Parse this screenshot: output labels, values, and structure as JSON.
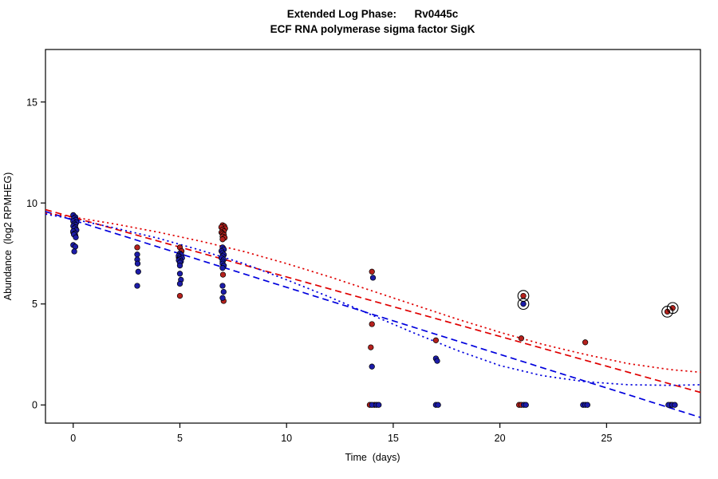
{
  "title": {
    "line1": "Extended Log Phase:      Rv0445c",
    "line2": "ECF RNA polymerase sigma factor SigK"
  },
  "chart_data": {
    "type": "scatter",
    "title": "Extended Log Phase:      Rv0445c",
    "subtitle": "ECF RNA polymerase sigma factor SigK",
    "xlabel": "Time  (days)",
    "ylabel": "Abundance  (log2 RPMHEG)",
    "xlim": [
      -1.3,
      29.4
    ],
    "ylim": [
      -0.9,
      17.6
    ],
    "x_ticks": [
      0,
      5,
      10,
      15,
      20,
      25
    ],
    "y_ticks": [
      0,
      5,
      10,
      15
    ],
    "grid": false,
    "legend": "none",
    "series": [
      {
        "name": "condition-red",
        "point_color": "#b5211d",
        "points": [
          [
            0.05,
            9.0
          ],
          [
            0.12,
            8.72
          ],
          [
            0.0,
            8.55
          ],
          [
            0.1,
            8.38
          ],
          [
            3.0,
            7.8
          ],
          [
            5.0,
            7.8
          ],
          [
            5.08,
            7.62
          ],
          [
            4.95,
            7.3
          ],
          [
            5.0,
            5.4
          ],
          [
            7.0,
            8.9
          ],
          [
            7.08,
            8.85
          ],
          [
            6.94,
            8.8
          ],
          [
            7.12,
            8.74
          ],
          [
            7.0,
            8.68
          ],
          [
            7.06,
            8.6
          ],
          [
            6.95,
            8.54
          ],
          [
            7.0,
            8.48
          ],
          [
            7.06,
            8.42
          ],
          [
            7.0,
            8.34
          ],
          [
            7.1,
            8.28
          ],
          [
            7.0,
            8.2
          ],
          [
            7.02,
            6.45
          ],
          [
            7.05,
            5.15
          ],
          [
            14.0,
            6.6
          ],
          [
            14.0,
            4.0
          ],
          [
            13.95,
            2.85
          ],
          [
            13.9,
            0
          ],
          [
            14.12,
            0
          ],
          [
            17.0,
            3.2
          ],
          [
            21.1,
            5.4
          ],
          [
            21.0,
            3.3
          ],
          [
            20.9,
            0
          ],
          [
            21.0,
            0
          ],
          [
            24.0,
            3.1
          ],
          [
            27.85,
            4.62
          ],
          [
            28.1,
            4.8
          ],
          [
            28.0,
            0
          ]
        ]
      },
      {
        "name": "condition-blue",
        "point_color": "#1c1ca8",
        "points": [
          [
            0.0,
            9.4
          ],
          [
            0.1,
            9.3
          ],
          [
            0.04,
            9.24
          ],
          [
            0.12,
            9.16
          ],
          [
            0.0,
            9.1
          ],
          [
            0.15,
            9.04
          ],
          [
            0.05,
            8.98
          ],
          [
            0.1,
            8.92
          ],
          [
            0.0,
            8.86
          ],
          [
            0.1,
            8.8
          ],
          [
            0.05,
            8.74
          ],
          [
            0.15,
            8.66
          ],
          [
            0.0,
            8.6
          ],
          [
            0.08,
            8.5
          ],
          [
            0.03,
            8.44
          ],
          [
            0.12,
            8.3
          ],
          [
            0.0,
            7.92
          ],
          [
            0.1,
            7.84
          ],
          [
            0.05,
            7.6
          ],
          [
            3.0,
            7.45
          ],
          [
            3.0,
            7.2
          ],
          [
            3.02,
            7.0
          ],
          [
            3.05,
            6.6
          ],
          [
            3.0,
            5.9
          ],
          [
            5.0,
            7.5
          ],
          [
            5.06,
            7.44
          ],
          [
            4.94,
            7.38
          ],
          [
            5.0,
            7.32
          ],
          [
            5.1,
            7.28
          ],
          [
            5.0,
            7.22
          ],
          [
            4.95,
            7.16
          ],
          [
            5.05,
            7.1
          ],
          [
            5.0,
            7.04
          ],
          [
            5.0,
            6.9
          ],
          [
            5.0,
            6.5
          ],
          [
            5.05,
            6.2
          ],
          [
            5.0,
            6.0
          ],
          [
            7.0,
            7.8
          ],
          [
            7.06,
            7.7
          ],
          [
            6.95,
            7.62
          ],
          [
            7.0,
            7.52
          ],
          [
            7.06,
            7.44
          ],
          [
            7.0,
            7.36
          ],
          [
            6.95,
            7.28
          ],
          [
            7.05,
            7.2
          ],
          [
            7.0,
            7.1
          ],
          [
            7.0,
            7.0
          ],
          [
            7.06,
            6.9
          ],
          [
            7.0,
            6.78
          ],
          [
            7.0,
            5.9
          ],
          [
            7.05,
            5.6
          ],
          [
            7.0,
            5.3
          ],
          [
            14.05,
            6.3
          ],
          [
            14.0,
            1.9
          ],
          [
            14.0,
            0
          ],
          [
            14.22,
            0
          ],
          [
            14.32,
            0
          ],
          [
            17.0,
            2.3
          ],
          [
            17.06,
            2.18
          ],
          [
            17.0,
            0
          ],
          [
            17.1,
            0
          ],
          [
            21.1,
            5.0
          ],
          [
            21.12,
            0
          ],
          [
            21.22,
            0
          ],
          [
            23.9,
            0
          ],
          [
            24.0,
            0
          ],
          [
            24.1,
            0
          ],
          [
            27.9,
            0
          ],
          [
            28.08,
            0
          ],
          [
            28.2,
            0
          ]
        ]
      }
    ],
    "flagged_points": [
      {
        "x": 21.1,
        "y": 5.4
      },
      {
        "x": 21.1,
        "y": 5.0
      },
      {
        "x": 27.85,
        "y": 4.62
      },
      {
        "x": 28.1,
        "y": 4.8
      }
    ],
    "curves": [
      {
        "name": "red-linear-fit",
        "color": "#e00000",
        "style": "dashed",
        "points": [
          [
            -1.3,
            9.67
          ],
          [
            29.4,
            0.62
          ]
        ]
      },
      {
        "name": "blue-linear-fit",
        "color": "#0000dd",
        "style": "dashed",
        "points": [
          [
            -1.3,
            9.58
          ],
          [
            29.4,
            -0.62
          ]
        ]
      },
      {
        "name": "red-smooth-fit",
        "color": "#e00000",
        "style": "dotted",
        "points": [
          [
            -1.3,
            9.5
          ],
          [
            0,
            9.3
          ],
          [
            2,
            8.95
          ],
          [
            4,
            8.55
          ],
          [
            6,
            8.1
          ],
          [
            8,
            7.6
          ],
          [
            10,
            7.0
          ],
          [
            12,
            6.35
          ],
          [
            14,
            5.65
          ],
          [
            16,
            4.95
          ],
          [
            18,
            4.25
          ],
          [
            20,
            3.6
          ],
          [
            22,
            3.0
          ],
          [
            24,
            2.5
          ],
          [
            26,
            2.05
          ],
          [
            28,
            1.75
          ],
          [
            29.4,
            1.62
          ]
        ]
      },
      {
        "name": "blue-smooth-fit",
        "color": "#0000dd",
        "style": "dotted",
        "points": [
          [
            -1.3,
            9.45
          ],
          [
            0,
            9.2
          ],
          [
            2,
            8.75
          ],
          [
            4,
            8.25
          ],
          [
            6,
            7.65
          ],
          [
            8,
            7.0
          ],
          [
            10,
            6.2
          ],
          [
            12,
            5.35
          ],
          [
            14,
            4.45
          ],
          [
            16,
            3.55
          ],
          [
            18,
            2.7
          ],
          [
            20,
            1.95
          ],
          [
            22,
            1.45
          ],
          [
            24,
            1.15
          ],
          [
            26,
            1.0
          ],
          [
            28,
            0.97
          ],
          [
            29.4,
            1.0
          ]
        ]
      }
    ]
  }
}
